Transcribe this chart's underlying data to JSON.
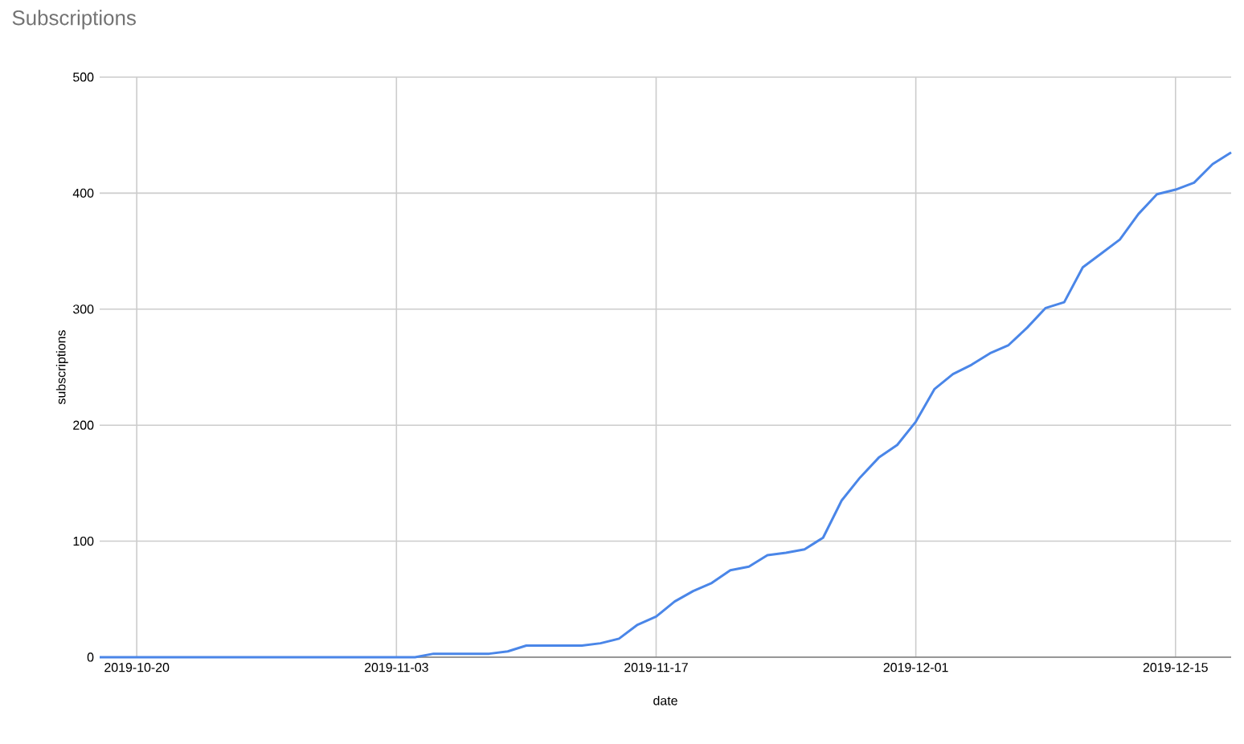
{
  "chart_data": {
    "type": "line",
    "title": "Subscriptions",
    "xlabel": "date",
    "ylabel": "subscriptions",
    "x": [
      "2019-10-18",
      "2019-10-19",
      "2019-10-20",
      "2019-10-21",
      "2019-10-22",
      "2019-10-23",
      "2019-10-24",
      "2019-10-25",
      "2019-10-26",
      "2019-10-27",
      "2019-10-28",
      "2019-10-29",
      "2019-10-30",
      "2019-10-31",
      "2019-11-01",
      "2019-11-02",
      "2019-11-03",
      "2019-11-04",
      "2019-11-05",
      "2019-11-06",
      "2019-11-07",
      "2019-11-08",
      "2019-11-09",
      "2019-11-10",
      "2019-11-11",
      "2019-11-12",
      "2019-11-13",
      "2019-11-14",
      "2019-11-15",
      "2019-11-16",
      "2019-11-17",
      "2019-11-18",
      "2019-11-19",
      "2019-11-20",
      "2019-11-21",
      "2019-11-22",
      "2019-11-23",
      "2019-11-24",
      "2019-11-25",
      "2019-11-26",
      "2019-11-27",
      "2019-11-28",
      "2019-11-29",
      "2019-11-30",
      "2019-12-01",
      "2019-12-02",
      "2019-12-03",
      "2019-12-04",
      "2019-12-05",
      "2019-12-06",
      "2019-12-07",
      "2019-12-08",
      "2019-12-09",
      "2019-12-10",
      "2019-12-11",
      "2019-12-12",
      "2019-12-13",
      "2019-12-14",
      "2019-12-15",
      "2019-12-16",
      "2019-12-17",
      "2019-12-18"
    ],
    "series": [
      {
        "color": "#4a86e8",
        "values": [
          0,
          0,
          0,
          0,
          0,
          0,
          0,
          0,
          0,
          0,
          0,
          0,
          0,
          0,
          0,
          0,
          0,
          0,
          3,
          3,
          3,
          3,
          5,
          10,
          10,
          10,
          10,
          12,
          16,
          28,
          35,
          48,
          57,
          64,
          75,
          78,
          88,
          90,
          93,
          103,
          135,
          155,
          172,
          183,
          203,
          231,
          244,
          252,
          262,
          269,
          284,
          301,
          306,
          336,
          348,
          360,
          382,
          399,
          403,
          409,
          425,
          435
        ]
      }
    ],
    "xlim": [
      "2019-10-18",
      "2019-12-18"
    ],
    "xticks": [
      "2019-10-20",
      "2019-11-03",
      "2019-11-17",
      "2019-12-01",
      "2019-12-15"
    ],
    "ylim": [
      0,
      500
    ],
    "yticks": [
      0,
      100,
      200,
      300,
      400,
      500
    ],
    "grid": true,
    "marker": "none",
    "line_style": "solid"
  }
}
